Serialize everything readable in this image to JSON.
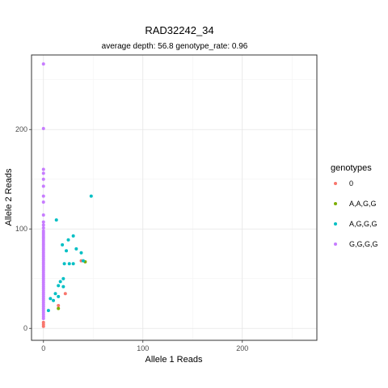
{
  "chart_data": {
    "type": "scatter",
    "title": "RAD32242_34",
    "subtitle": "average depth:  56.8  genotype_rate:  0.96",
    "xlabel": "Allele 1 Reads",
    "ylabel": "Allele 2 Reads",
    "xlim": [
      -12,
      275
    ],
    "ylim": [
      -12,
      275
    ],
    "x_ticks": [
      0,
      100,
      200
    ],
    "y_ticks": [
      0,
      100,
      200
    ],
    "x_tick_labels": [
      "0",
      "100",
      "200"
    ],
    "y_tick_labels": [
      "0",
      "100",
      "200"
    ],
    "x_minor": [
      50,
      150,
      250
    ],
    "y_minor": [
      50,
      150,
      250
    ],
    "legend_title": "genotypes",
    "legend_position": "right",
    "series": [
      {
        "name": "0",
        "color": "#F8766D",
        "points": [
          [
            0,
            2
          ],
          [
            0,
            4
          ],
          [
            0,
            6
          ],
          [
            22,
            35
          ],
          [
            15,
            23
          ],
          [
            38,
            68
          ]
        ]
      },
      {
        "name": "A,A,G,G",
        "color": "#7CAE00",
        "points": [
          [
            15,
            20
          ],
          [
            42,
            67
          ]
        ]
      },
      {
        "name": "A,G,G,G",
        "color": "#00BFC4",
        "points": [
          [
            48,
            133
          ],
          [
            13,
            109
          ],
          [
            19,
            84
          ],
          [
            25,
            89
          ],
          [
            30,
            93
          ],
          [
            23,
            78
          ],
          [
            33,
            80
          ],
          [
            38,
            76
          ],
          [
            21,
            65
          ],
          [
            26,
            65
          ],
          [
            30,
            65
          ],
          [
            40,
            68
          ],
          [
            17,
            47
          ],
          [
            20,
            50
          ],
          [
            15,
            43
          ],
          [
            12,
            35
          ],
          [
            7,
            30
          ],
          [
            10,
            28
          ],
          [
            15,
            32
          ],
          [
            20,
            42
          ],
          [
            5,
            18
          ]
        ]
      },
      {
        "name": "G,G,G,G",
        "color": "#C77CFF",
        "points": [
          [
            0,
            266
          ],
          [
            0,
            201
          ],
          [
            0,
            160
          ],
          [
            0,
            156
          ],
          [
            0,
            150
          ],
          [
            0,
            143
          ],
          [
            0,
            133
          ],
          [
            0,
            127
          ],
          [
            0,
            114
          ],
          [
            0,
            107
          ],
          [
            0,
            104
          ],
          [
            0,
            101
          ],
          [
            0,
            98
          ],
          [
            0,
            96
          ],
          [
            0,
            94
          ],
          [
            0,
            92
          ],
          [
            0,
            90
          ],
          [
            0,
            88
          ],
          [
            0,
            86
          ],
          [
            0,
            84
          ],
          [
            0,
            82
          ],
          [
            0,
            80
          ],
          [
            0,
            78
          ],
          [
            0,
            76
          ],
          [
            0,
            74
          ],
          [
            0,
            72
          ],
          [
            0,
            70
          ],
          [
            0,
            68
          ],
          [
            0,
            66
          ],
          [
            0,
            64
          ],
          [
            0,
            62
          ],
          [
            0,
            60
          ],
          [
            0,
            58
          ],
          [
            0,
            56
          ],
          [
            0,
            54
          ],
          [
            0,
            52
          ],
          [
            0,
            50
          ],
          [
            0,
            48
          ],
          [
            0,
            46
          ],
          [
            0,
            44
          ],
          [
            0,
            42
          ],
          [
            0,
            40
          ],
          [
            0,
            38
          ],
          [
            0,
            36
          ],
          [
            0,
            34
          ],
          [
            0,
            32
          ],
          [
            0,
            30
          ],
          [
            0,
            28
          ],
          [
            0,
            26
          ],
          [
            0,
            24
          ],
          [
            0,
            22
          ],
          [
            0,
            20
          ],
          [
            0,
            18
          ],
          [
            0,
            16
          ],
          [
            0,
            14
          ],
          [
            0,
            12
          ],
          [
            0,
            10
          ]
        ]
      }
    ]
  }
}
